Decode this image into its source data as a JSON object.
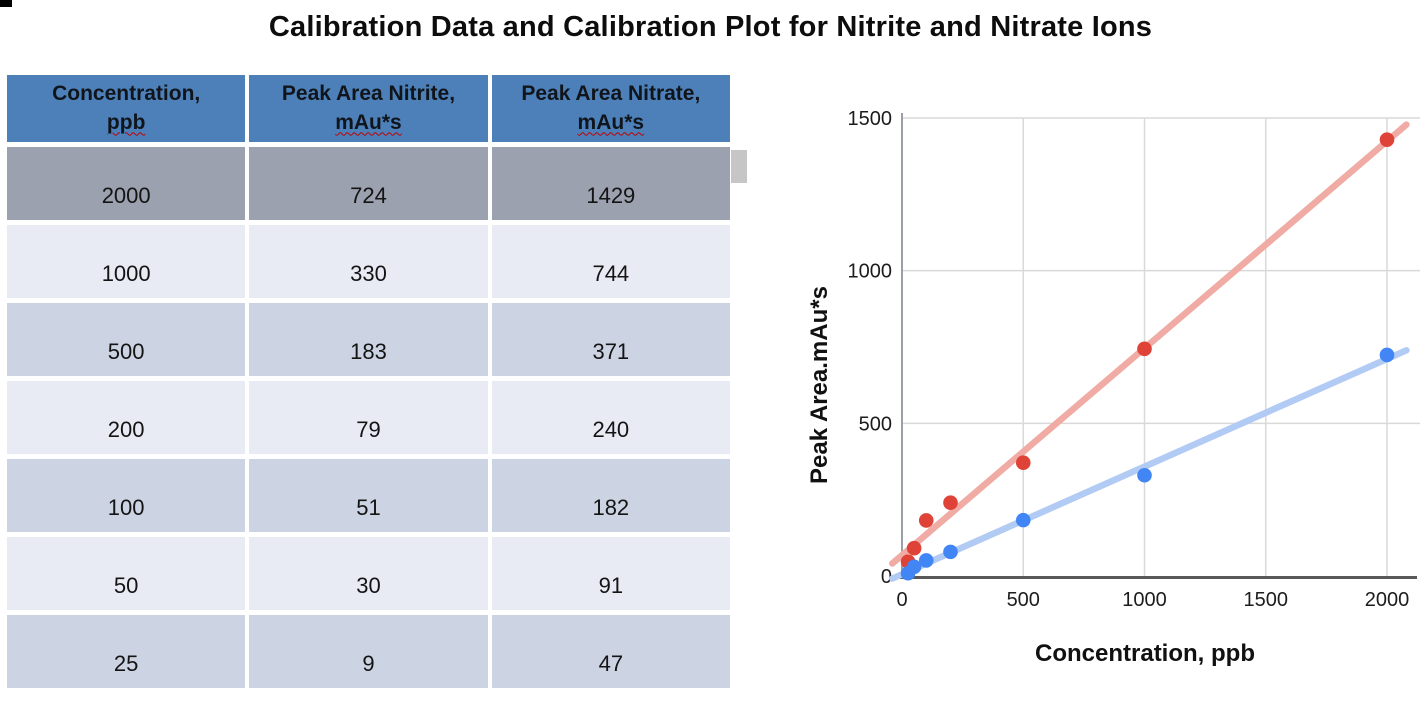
{
  "page": {
    "title": "Calibration Data and Calibration Plot for Nitrite and Nitrate Ions"
  },
  "table": {
    "columns": [
      {
        "line1": "Concentration,",
        "line2": "ppb"
      },
      {
        "line1": "Peak Area Nitrite,",
        "line2": "mAu*s"
      },
      {
        "line1": "Peak Area Nitrate,",
        "line2": "mAu*s"
      }
    ],
    "rows": [
      [
        "2000",
        "724",
        "1429"
      ],
      [
        "1000",
        "330",
        "744"
      ],
      [
        "500",
        "183",
        "371"
      ],
      [
        "200",
        "79",
        "240"
      ],
      [
        "100",
        "51",
        "182"
      ],
      [
        "50",
        "30",
        "91"
      ],
      [
        "25",
        "9",
        "47"
      ]
    ]
  },
  "chart_data": {
    "type": "scatter",
    "title": "",
    "xlabel": "Concentration, ppb",
    "ylabel": "Peak Area.mAu*s",
    "xlim": [
      0,
      2000
    ],
    "ylim": [
      0,
      1500
    ],
    "x_ticks": [
      0,
      500,
      1000,
      1500,
      2000
    ],
    "y_ticks": [
      0,
      500,
      1000,
      1500
    ],
    "grid": true,
    "legend": "none",
    "trendlines": true,
    "x": [
      25,
      50,
      100,
      200,
      500,
      1000,
      2000
    ],
    "series": [
      {
        "name": "Peak Area Nitrate, mAu*s",
        "color": "#df4337",
        "trend_color": "#f0aba4",
        "values": [
          47,
          91,
          182,
          240,
          371,
          744,
          1429
        ]
      },
      {
        "name": "Peak Area Nitrite, mAu*s",
        "color": "#4285f4",
        "trend_color": "#b1cbf5",
        "values": [
          9,
          30,
          51,
          79,
          183,
          330,
          724
        ]
      }
    ]
  },
  "colors": {
    "header_blue": "#4d80b9",
    "row_selected_gray": "#9ba1ae",
    "row_light": "#e9ebf4",
    "row_mid": "#ccd3e2",
    "grid_line": "#d9d9d9",
    "y_axis_line": "#9aa0a6",
    "x_axis_line": "#595959",
    "tick_text": "#1c1c1c",
    "misspell_underline": "#c00000"
  }
}
